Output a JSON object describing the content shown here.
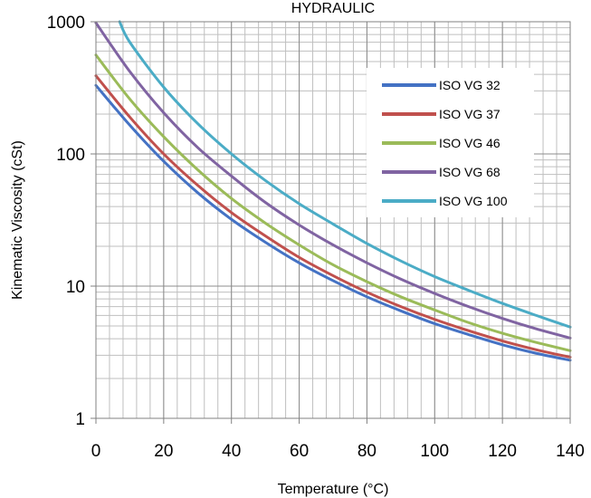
{
  "chart_data": {
    "type": "line",
    "title": "HYDRAULIC",
    "xlabel": "Temperature (°C)",
    "ylabel": "Kinematic Viscosity  (cSt)",
    "xlim": [
      0,
      140
    ],
    "ylim": [
      1,
      1000
    ],
    "y_scale": "log",
    "x_ticks": [
      "0",
      "20",
      "40",
      "60",
      "80",
      "100",
      "120",
      "140"
    ],
    "y_ticks": [
      "1",
      "10",
      "100",
      "1000"
    ],
    "grid": true,
    "legend_position": "top-right",
    "series": [
      {
        "name": "ISO VG 32",
        "color": "#4472C4",
        "x": [
          0,
          10,
          20,
          30,
          40,
          50,
          60,
          70,
          80,
          90,
          100,
          110,
          120,
          130,
          140
        ],
        "y": [
          330,
          165,
          88,
          51,
          32,
          21.5,
          15,
          11,
          8.3,
          6.5,
          5.2,
          4.3,
          3.6,
          3.1,
          2.75
        ]
      },
      {
        "name": "ISO VG 37",
        "color": "#C0504D",
        "x": [
          0,
          10,
          20,
          30,
          40,
          50,
          60,
          70,
          80,
          90,
          100,
          110,
          120,
          130,
          140
        ],
        "y": [
          390,
          190,
          100,
          58,
          36,
          24,
          16.5,
          12,
          9,
          7,
          5.6,
          4.6,
          3.85,
          3.3,
          2.9
        ]
      },
      {
        "name": "ISO VG 46",
        "color": "#9BBB59",
        "x": [
          0,
          10,
          20,
          30,
          40,
          50,
          60,
          70,
          80,
          90,
          100,
          110,
          120,
          130,
          140
        ],
        "y": [
          560,
          260,
          135,
          76,
          46,
          30,
          20.5,
          14.5,
          10.8,
          8.3,
          6.6,
          5.3,
          4.4,
          3.75,
          3.25
        ]
      },
      {
        "name": "ISO VG 68",
        "color": "#8064A2",
        "x": [
          0,
          10,
          20,
          30,
          40,
          50,
          60,
          70,
          80,
          90,
          100,
          110,
          120,
          130,
          140
        ],
        "y": [
          980,
          420,
          205,
          112,
          68,
          43,
          29,
          20.5,
          15,
          11.3,
          8.8,
          7,
          5.7,
          4.75,
          4.05
        ]
      },
      {
        "name": "ISO VG 100",
        "color": "#4BACC6",
        "x": [
          7,
          10,
          20,
          30,
          40,
          50,
          60,
          70,
          80,
          90,
          100,
          110,
          120,
          130,
          140
        ],
        "y": [
          1000,
          700,
          320,
          170,
          100,
          63,
          42,
          29.5,
          21,
          15.5,
          11.8,
          9.3,
          7.4,
          6,
          4.9
        ]
      }
    ]
  }
}
